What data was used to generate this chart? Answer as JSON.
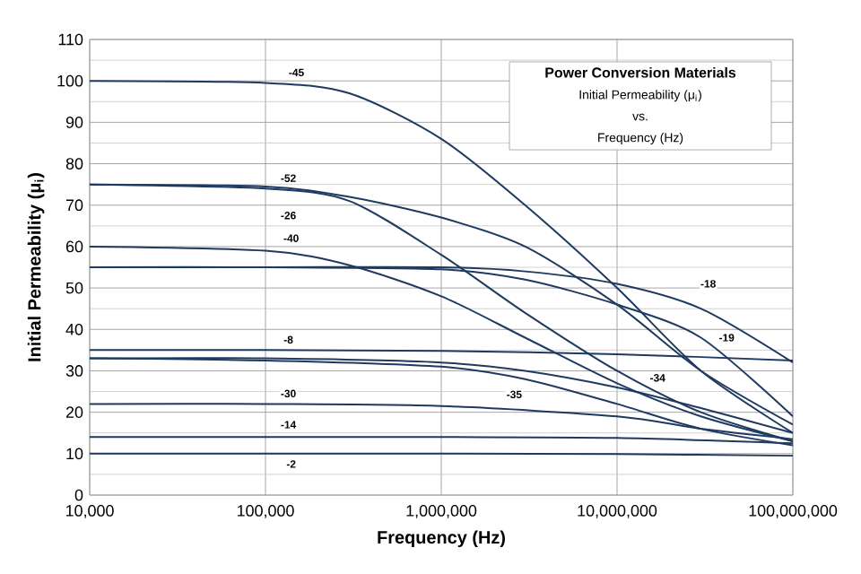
{
  "chart_data": {
    "type": "line",
    "title": "Power Conversion Materials",
    "subtitle": "Initial Permeability (μ$_{i}$)",
    "xlabel": "Frequency (Hz)",
    "ylabel": "Initial Permeability (μ$_{i}$)",
    "log": "x",
    "xlim": [
      10000,
      100000000
    ],
    "ylim": [
      0,
      110
    ],
    "xticks": [
      {
        "value": 10000,
        "label": "10,000"
      },
      {
        "value": 100000,
        "label": "100,000"
      },
      {
        "value": 1000000,
        "label": "1,000,000"
      },
      {
        "value": 10000000,
        "label": "10,000,000"
      },
      {
        "value": 100000000,
        "label": "100,000,000"
      }
    ],
    "yticks": [
      0,
      10,
      20,
      30,
      40,
      50,
      60,
      70,
      80,
      90,
      100,
      110
    ],
    "grid": true,
    "marker": "none",
    "line_style": "solid",
    "series": [
      {
        "color": "#1f3a60",
        "x": [
          10000,
          100000,
          300000,
          1000000,
          3000000,
          10000000,
          30000000,
          100000000
        ],
        "values": [
          100,
          99.5,
          97,
          86,
          70,
          50,
          30,
          15
        ]
      },
      {
        "color": "#1f3a60",
        "x": [
          10000,
          100000,
          300000,
          1000000,
          3000000,
          10000000,
          30000000,
          100000000
        ],
        "values": [
          75,
          74.5,
          72,
          67,
          60,
          46,
          30,
          17
        ]
      },
      {
        "color": "#1f3a60",
        "x": [
          10000,
          100000,
          300000,
          1000000,
          3000000,
          10000000,
          30000000,
          100000000
        ],
        "values": [
          75,
          74,
          71,
          58,
          44,
          30,
          20,
          13
        ]
      },
      {
        "color": "#1f3a60",
        "x": [
          10000,
          100000,
          300000,
          1000000,
          3000000,
          10000000,
          30000000,
          100000000
        ],
        "values": [
          60,
          59,
          55.5,
          48,
          38,
          27,
          19,
          13
        ]
      },
      {
        "color": "#1f3a60",
        "x": [
          10000,
          100000,
          1000000,
          3000000,
          10000000,
          30000000,
          100000000
        ],
        "values": [
          55,
          55,
          55,
          54,
          51,
          45,
          32
        ]
      },
      {
        "color": "#1f3a60",
        "x": [
          10000,
          100000,
          1000000,
          3000000,
          10000000,
          30000000,
          100000000
        ],
        "values": [
          55,
          55,
          54.5,
          52,
          46,
          38,
          19
        ]
      },
      {
        "color": "#1f3a60",
        "x": [
          10000,
          100000,
          1000000,
          10000000,
          100000000
        ],
        "values": [
          35,
          35,
          34.8,
          34,
          32.5
        ]
      },
      {
        "color": "#1f3a60",
        "x": [
          10000,
          100000,
          1000000,
          3000000,
          10000000,
          30000000,
          100000000
        ],
        "values": [
          33,
          33,
          32,
          30,
          26,
          21,
          15
        ]
      },
      {
        "color": "#1f3a60",
        "x": [
          10000,
          100000,
          1000000,
          3000000,
          10000000,
          30000000,
          100000000
        ],
        "values": [
          33,
          32.5,
          31,
          28,
          22,
          16,
          12
        ]
      },
      {
        "color": "#1f3a60",
        "x": [
          10000,
          100000,
          1000000,
          10000000,
          30000000,
          100000000
        ],
        "values": [
          22,
          22,
          21.5,
          19,
          16,
          13.5
        ]
      },
      {
        "color": "#1f3a60",
        "x": [
          10000,
          1000000,
          10000000,
          100000000
        ],
        "values": [
          14,
          14,
          13.8,
          12.5
        ]
      },
      {
        "color": "#1f3a60",
        "x": [
          10000,
          1000000,
          10000000,
          100000000
        ],
        "values": [
          10,
          10,
          9.9,
          9.5
        ]
      }
    ],
    "annotations": [
      "vs.",
      "Frequency (Hz)",
      {
        "text": "-45",
        "x": 150000,
        "y": 102
      },
      {
        "text": "-52",
        "x": 135000,
        "y": 76.5
      },
      {
        "text": "-26",
        "x": 135000,
        "y": 67.5
      },
      {
        "text": "-40",
        "x": 140000,
        "y": 62
      },
      {
        "text": "-8",
        "x": 135000,
        "y": 37.5
      },
      {
        "text": "-30",
        "x": 135000,
        "y": 24.5
      },
      {
        "text": "-14",
        "x": 135000,
        "y": 17
      },
      {
        "text": "-2",
        "x": 140000,
        "y": 7.5
      },
      {
        "text": "-18",
        "x": 33000000,
        "y": 51
      },
      {
        "text": "-19",
        "x": 42000000,
        "y": 38
      },
      {
        "text": "-34",
        "x": 17000000,
        "y": 28.3
      },
      {
        "text": "-35",
        "x": 2600000,
        "y": 24.3
      }
    ]
  }
}
